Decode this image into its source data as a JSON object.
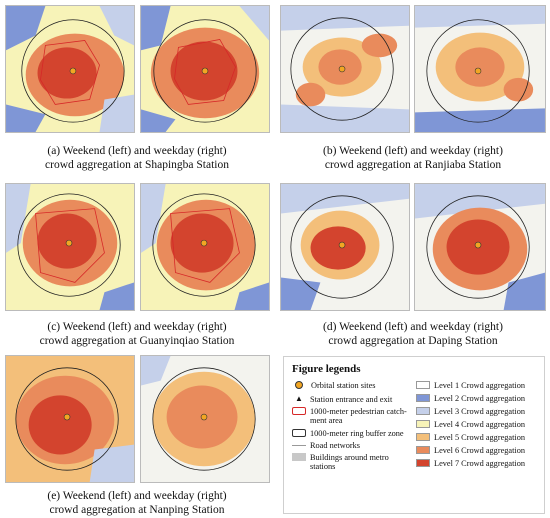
{
  "panels": [
    {
      "id": "a",
      "caption_line1": "(a) Weekend (left) and weekday (right)",
      "caption_line2": "crowd aggregation at Shapingba Station"
    },
    {
      "id": "b",
      "caption_line1": "(b) Weekend (left) and weekday (right)",
      "caption_line2": "crowd aggregation at Ranjiaba Station"
    },
    {
      "id": "c",
      "caption_line1": "(c) Weekend (left) and weekday (right)",
      "caption_line2": "crowd aggregation at Guanyinqiao Station"
    },
    {
      "id": "d",
      "caption_line1": "(d) Weekend (left) and weekday (right)",
      "caption_line2": "crowd aggregation at Daping Station"
    },
    {
      "id": "e",
      "caption_line1": "(e) Weekend (left) and weekday (right)",
      "caption_line2": "crowd aggregation at Nanping Station"
    }
  ],
  "legend": {
    "title": "Figure legends",
    "left_items": [
      {
        "label": "Orbital station sites",
        "icon": "orbital-station-icon",
        "color": "#f2a623"
      },
      {
        "label": "Station entrance and exit",
        "icon": "entrance-icon",
        "color": "#555555"
      },
      {
        "label": "1000-meter pedestrian catch-ment area",
        "icon": "catchment-icon",
        "color": "#d62828"
      },
      {
        "label": "1000-meter ring buffer zone",
        "icon": "buffer-icon",
        "color": "#333333"
      },
      {
        "label": "Road networks",
        "icon": "road-icon",
        "color": "#999999"
      },
      {
        "label": "Buildings around metro stations",
        "icon": "building-icon",
        "color": "#c8c8c8"
      }
    ],
    "right_items": [
      {
        "label": "Level 1 Crowd aggregation",
        "color": "#ffffff"
      },
      {
        "label": "Level 2 Crowd aggregation",
        "color": "#7f96d6"
      },
      {
        "label": "Level 3 Crowd aggregation",
        "color": "#c5d0ea"
      },
      {
        "label": "Level 4 Crowd aggregation",
        "color": "#f7f3b8"
      },
      {
        "label": "Level 5 Crowd aggregation",
        "color": "#f3bf7a"
      },
      {
        "label": "Level 6 Crowd aggregation",
        "color": "#e98b5c"
      },
      {
        "label": "Level 7 Crowd aggregation",
        "color": "#d3442e"
      }
    ]
  }
}
